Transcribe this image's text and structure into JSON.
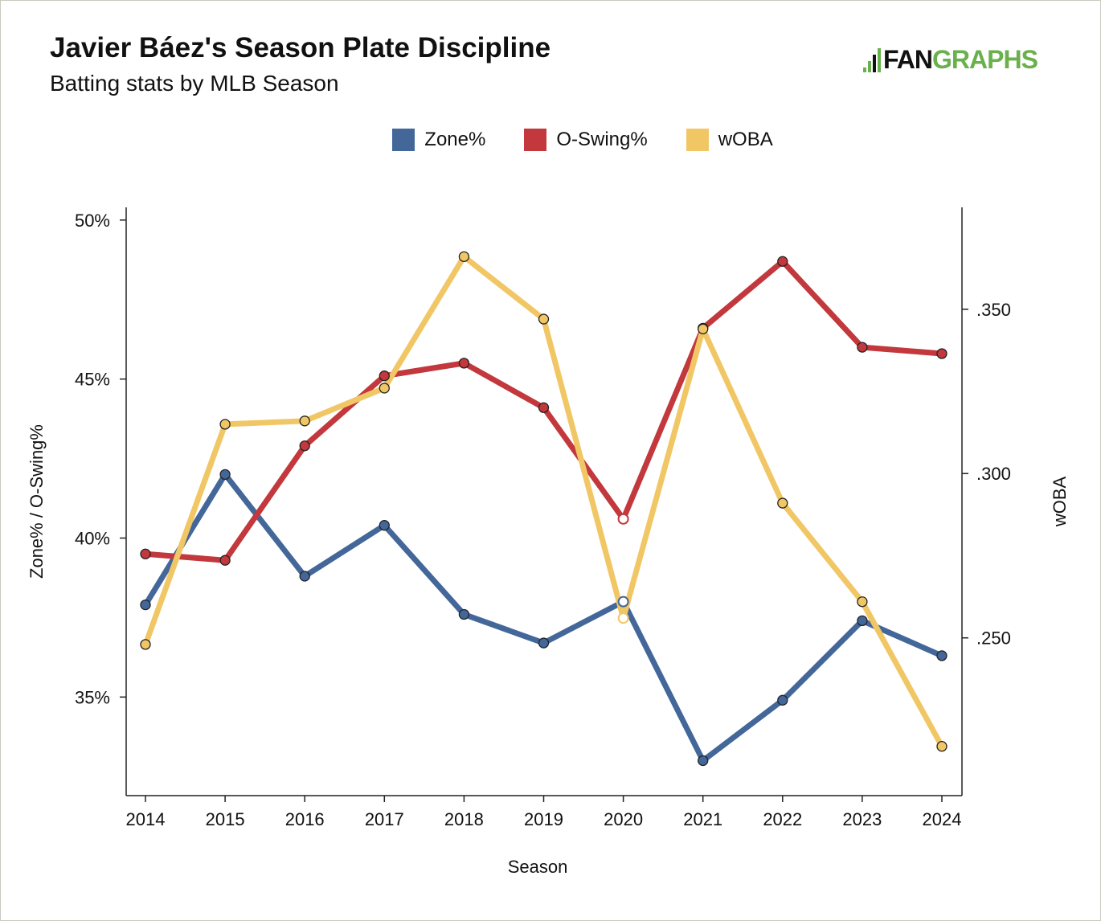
{
  "header": {
    "title": "Javier Báez's Season Plate Discipline",
    "subtitle": "Batting stats by MLB Season",
    "logo_text": "FANGRAPHS",
    "logo_part1": "FAN",
    "logo_part2": "GRAPHS"
  },
  "chart_data": {
    "type": "line",
    "title": "Javier Báez's Season Plate Discipline",
    "subtitle": "Batting stats by MLB Season",
    "xlabel": "Season",
    "ylabel": "Zone% / O-Swing%",
    "y2label": "wOBA",
    "x": [
      2014,
      2015,
      2016,
      2017,
      2018,
      2019,
      2020,
      2021,
      2022,
      2023,
      2024
    ],
    "ylim": [
      31.9,
      50.4
    ],
    "y2lim": [
      0.202,
      0.381
    ],
    "yticks": [
      {
        "value": 35,
        "label": "35%"
      },
      {
        "value": 40,
        "label": "40%"
      },
      {
        "value": 45,
        "label": "45%"
      },
      {
        "value": 50,
        "label": "50%"
      }
    ],
    "y2ticks": [
      {
        "value": 0.25,
        "label": ".250"
      },
      {
        "value": 0.3,
        "label": ".300"
      },
      {
        "value": 0.35,
        "label": ".350"
      }
    ],
    "legend_position": "top-center",
    "hollow_x": [
      2020
    ],
    "series": [
      {
        "name": "Zone%",
        "axis": "left",
        "color": "#44679a",
        "values": [
          37.9,
          42.0,
          38.8,
          40.4,
          37.6,
          36.7,
          38.0,
          33.0,
          34.9,
          37.4,
          36.3
        ]
      },
      {
        "name": "O-Swing%",
        "axis": "left",
        "color": "#c2383c",
        "values": [
          39.5,
          39.3,
          42.9,
          45.1,
          45.5,
          44.1,
          40.6,
          46.6,
          48.7,
          46.0,
          45.8
        ]
      },
      {
        "name": "wOBA",
        "axis": "right",
        "color": "#f1c766",
        "values": [
          0.248,
          0.315,
          0.316,
          0.326,
          0.366,
          0.347,
          0.256,
          0.344,
          0.291,
          0.261,
          0.217
        ]
      }
    ]
  }
}
